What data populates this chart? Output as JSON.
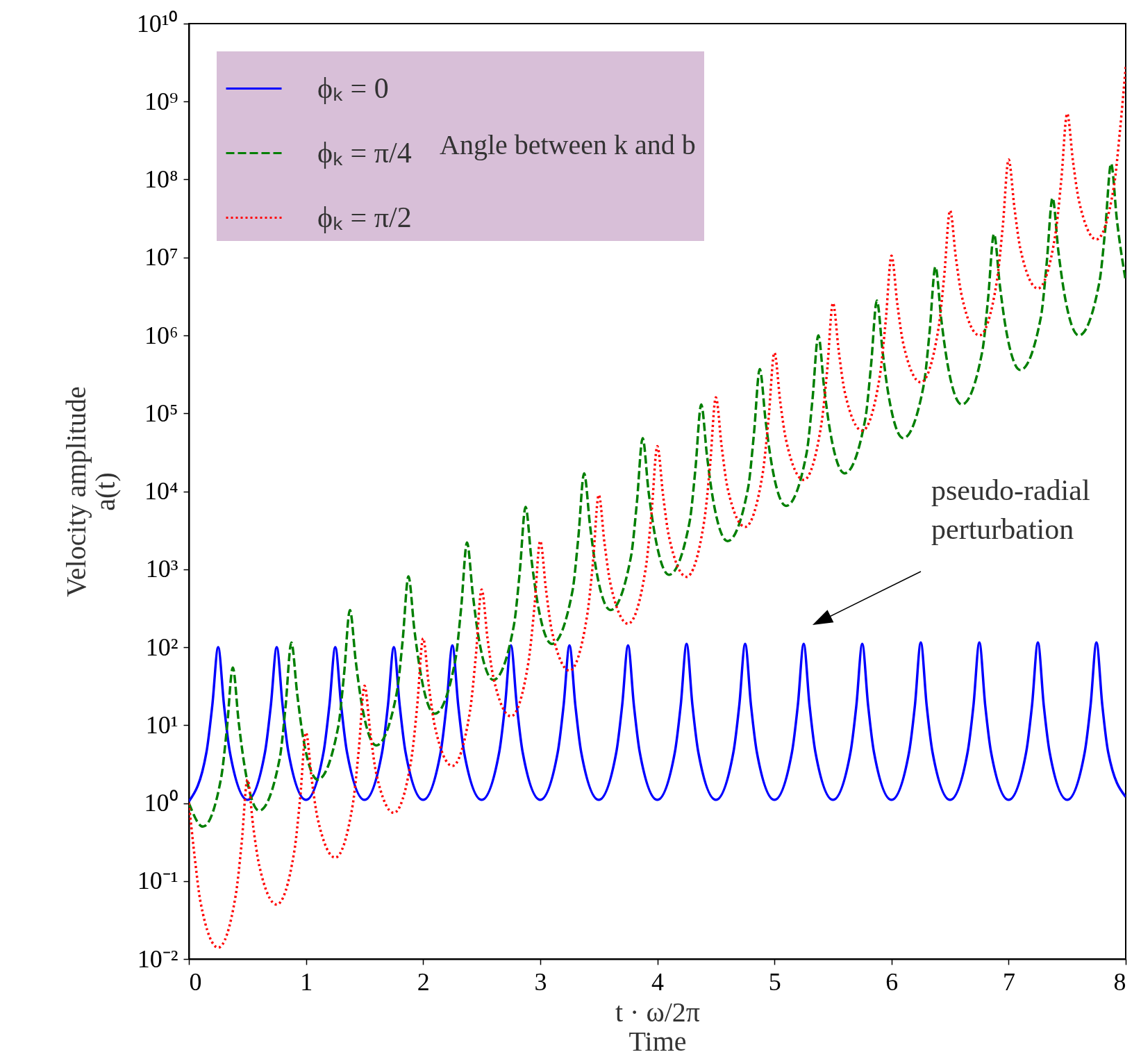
{
  "chart_data": {
    "type": "line",
    "xlabel": "t · ω/2π\nTime",
    "ylabel": "Velocity amplitude\na(t)",
    "legend_title": "Angle between k and b",
    "legend": "top left",
    "grid": false,
    "log": true,
    "xlim": [
      0,
      8
    ],
    "xticks": [
      0,
      1,
      2,
      3,
      4,
      5,
      6,
      7,
      8
    ],
    "ylim": [
      0.01,
      10000000000
    ],
    "yticks": [
      {
        "value": 0.01,
        "label": "10⁻²"
      },
      {
        "value": 0.1,
        "label": "10⁻¹"
      },
      {
        "value": 1,
        "label": "10⁰"
      },
      {
        "value": 10,
        "label": "10¹"
      },
      {
        "value": 100,
        "label": "10²"
      },
      {
        "value": 1000,
        "label": "10³"
      },
      {
        "value": 10000,
        "label": "10⁴"
      },
      {
        "value": 100000,
        "label": "10⁵"
      },
      {
        "value": 1000000,
        "label": "10⁶"
      },
      {
        "value": 10000000,
        "label": "10⁷"
      },
      {
        "value": 100000000,
        "label": "10⁸"
      },
      {
        "value": 1000000000,
        "label": "10⁹"
      },
      {
        "value": 10000000000,
        "label": "10¹⁰"
      }
    ],
    "annotations": [
      "pseudo-radial\nperturbation"
    ],
    "series": [
      {
        "name": "ϕₖ = 0",
        "line_style": "solid",
        "color": "#0000ff",
        "x": [
          0,
          0.15,
          0.2,
          0.25,
          0.3,
          0.35,
          0.5,
          0.65,
          0.7,
          0.75,
          0.8,
          0.85,
          1,
          1.15,
          1.2,
          1.25,
          1.3,
          1.35,
          1.5,
          1.65,
          1.7,
          1.75,
          1.8,
          1.85,
          2,
          2.15,
          2.2,
          2.25,
          2.3,
          2.35,
          2.5,
          2.65,
          2.7,
          2.75,
          2.8,
          2.85,
          3,
          3.15,
          3.2,
          3.25,
          3.3,
          3.35,
          3.5,
          3.65,
          3.7,
          3.75,
          3.8,
          3.85,
          4,
          4.15,
          4.2,
          4.25,
          4.3,
          4.35,
          4.5,
          4.65,
          4.7,
          4.75,
          4.8,
          4.85,
          5,
          5.15,
          5.2,
          5.25,
          5.3,
          5.35,
          5.5,
          5.65,
          5.7,
          5.75,
          5.8,
          5.85,
          6,
          6.15,
          6.2,
          6.25,
          6.3,
          6.35,
          6.5,
          6.65,
          6.7,
          6.75,
          6.8,
          6.85,
          7,
          7.15,
          7.2,
          7.25,
          7.3,
          7.35,
          7.5,
          7.65,
          7.7,
          7.75,
          7.8,
          7.85,
          8
        ],
        "values": [
          1.05,
          4.5,
          18,
          100,
          18,
          4.5,
          1.1,
          4.5,
          18,
          100,
          18,
          4.5,
          1.1,
          4.5,
          18,
          100,
          18,
          4.5,
          1.1,
          4.5,
          18,
          100,
          18,
          4.5,
          1.1,
          4.5,
          18,
          105,
          18,
          4.5,
          1.1,
          4.5,
          18,
          105,
          18,
          4.5,
          1.1,
          4.5,
          18,
          105,
          18,
          4.5,
          1.1,
          4.5,
          18,
          105,
          18,
          4.5,
          1.1,
          4.5,
          18,
          110,
          18,
          4.5,
          1.1,
          4.5,
          18,
          110,
          18,
          4.5,
          1.1,
          4.5,
          18,
          110,
          18,
          4.5,
          1.1,
          4.5,
          18,
          110,
          18,
          4.5,
          1.1,
          4.5,
          18,
          115,
          18,
          4.5,
          1.1,
          4.5,
          18,
          115,
          18,
          4.5,
          1.1,
          4.5,
          18,
          115,
          18,
          4.5,
          1.1,
          4.5,
          18,
          115,
          18,
          4.5,
          1.2
        ]
      },
      {
        "name": "ϕₖ = π/4",
        "line_style": "dashed",
        "color": "#007f00",
        "x": [
          0,
          0.12,
          0.275,
          0.325,
          0.375,
          0.425,
          0.475,
          0.6,
          0.775,
          0.825,
          0.875,
          0.925,
          0.975,
          1.1,
          1.275,
          1.325,
          1.375,
          1.425,
          1.475,
          1.6,
          1.775,
          1.825,
          1.875,
          1.925,
          1.975,
          2.1,
          2.275,
          2.325,
          2.375,
          2.425,
          2.475,
          2.6,
          2.775,
          2.825,
          2.875,
          2.925,
          2.975,
          3.1,
          3.275,
          3.325,
          3.375,
          3.425,
          3.475,
          3.6,
          3.775,
          3.825,
          3.875,
          3.925,
          3.975,
          4.1,
          4.275,
          4.325,
          4.375,
          4.425,
          4.475,
          4.6,
          4.775,
          4.825,
          4.875,
          4.925,
          4.975,
          5.1,
          5.275,
          5.325,
          5.375,
          5.425,
          5.475,
          5.6,
          5.775,
          5.825,
          5.875,
          5.925,
          5.975,
          6.1,
          6.275,
          6.325,
          6.375,
          6.425,
          6.475,
          6.6,
          6.775,
          6.825,
          6.875,
          6.925,
          6.975,
          7.1,
          7.275,
          7.325,
          7.375,
          7.425,
          7.475,
          7.6,
          7.775,
          7.825,
          7.875,
          7.925,
          8
        ],
        "values": [
          1,
          0.5,
          2.1,
          9.2,
          55,
          11,
          3,
          0.8,
          3.7,
          17,
          115,
          25,
          7,
          2,
          9.5,
          45,
          300,
          66,
          19,
          5.5,
          26,
          120,
          810,
          170,
          50,
          14,
          68,
          320,
          2200,
          470,
          130,
          38,
          190,
          910,
          6300,
          1350,
          390,
          110,
          520,
          2500,
          17000,
          3700,
          1050,
          300,
          1450,
          7000,
          48000,
          10000,
          3000,
          850,
          4000,
          19000,
          130000,
          28000,
          8000,
          2300,
          11000,
          54000,
          370000,
          80000,
          23000,
          6500,
          31000,
          150000,
          1000000,
          210000,
          60000,
          17000,
          83000,
          410000,
          2800000,
          600000,
          170000,
          48000,
          230000,
          1100000,
          7600000,
          1600000,
          460000,
          130000,
          620000,
          3000000,
          20000000,
          4400000,
          1260000,
          360000,
          1700000,
          8400000,
          58000000,
          12000000,
          3500000,
          1000000,
          4800000,
          23000000,
          160000000,
          30000000,
          5000000
        ]
      },
      {
        "name": "ϕₖ = π/2",
        "line_style": "dotted",
        "color": "#ff0000",
        "x": [
          0,
          0.05,
          0.1,
          0.25,
          0.4,
          0.45,
          0.5,
          0.55,
          0.6,
          0.75,
          0.9,
          0.95,
          1,
          1.05,
          1.1,
          1.25,
          1.4,
          1.45,
          1.5,
          1.55,
          1.6,
          1.75,
          1.9,
          1.95,
          2,
          2.05,
          2.1,
          2.25,
          2.4,
          2.45,
          2.5,
          2.55,
          2.6,
          2.75,
          2.9,
          2.95,
          3,
          3.05,
          3.1,
          3.25,
          3.4,
          3.45,
          3.5,
          3.55,
          3.6,
          3.75,
          3.9,
          3.95,
          4,
          4.05,
          4.1,
          4.25,
          4.4,
          4.45,
          4.5,
          4.55,
          4.6,
          4.75,
          4.9,
          4.95,
          5,
          5.05,
          5.1,
          5.25,
          5.4,
          5.45,
          5.5,
          5.55,
          5.6,
          5.75,
          5.9,
          5.95,
          6,
          6.05,
          6.1,
          6.25,
          6.4,
          6.45,
          6.5,
          6.55,
          6.6,
          6.75,
          6.9,
          6.95,
          7,
          7.05,
          7.1,
          7.25,
          7.4,
          7.45,
          7.5,
          7.55,
          7.6,
          7.75,
          7.9,
          7.95,
          8
        ],
        "values": [
          1,
          0.2,
          0.053,
          0.014,
          0.066,
          0.3,
          2,
          0.49,
          0.16,
          0.05,
          0.24,
          1.15,
          8,
          1.95,
          0.63,
          0.2,
          0.97,
          4.7,
          32,
          7.8,
          2.4,
          0.75,
          3.7,
          18,
          130,
          31,
          9.7,
          3,
          15,
          76,
          550,
          130,
          41,
          13,
          65,
          320,
          2300,
          540,
          160,
          50,
          250,
          1200,
          9000,
          2100,
          650,
          200,
          1000,
          5100,
          38000,
          8700,
          2600,
          800,
          4100,
          21000,
          160000,
          37000,
          11000,
          3500,
          17000,
          85000,
          600000,
          140000,
          45000,
          14000,
          71000,
          350000,
          2600000,
          620000,
          190000,
          60000,
          300000,
          1500000,
          10500000,
          2500000,
          790000,
          250000,
          1200000,
          5800000,
          40000000,
          9800000,
          3200000,
          1000000,
          5000000,
          25000000,
          180000000,
          43000000,
          13000000,
          4000000,
          20000000,
          100000000,
          700000000,
          170000000,
          54000000,
          17000000,
          83000000,
          410000000,
          2800000000
        ]
      }
    ]
  }
}
